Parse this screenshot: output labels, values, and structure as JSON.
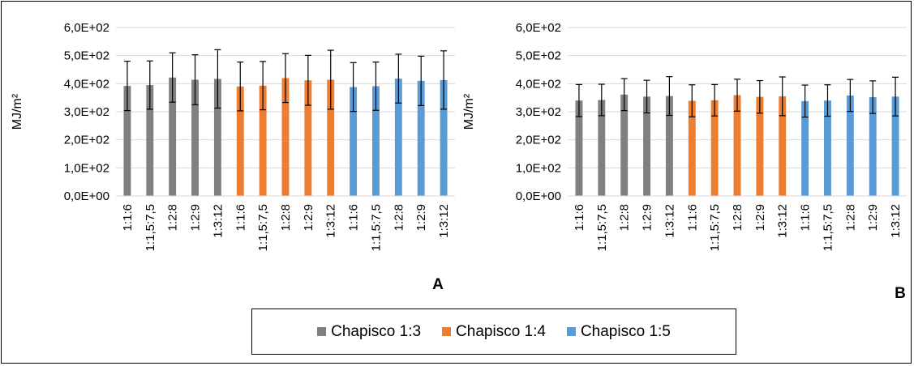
{
  "chart_data": [
    {
      "type": "bar",
      "panel_label": "A",
      "ylabel": "MJ/m²",
      "ylim": [
        0,
        600
      ],
      "ytick_labels": [
        "0,0E+00",
        "1,0E+02",
        "2,0E+02",
        "3,0E+02",
        "4,0E+02",
        "5,0E+02",
        "6,0E+02"
      ],
      "categories": [
        "1:1:6",
        "1:1,5:7,5",
        "1:2:8",
        "1:2:9",
        "1:3:12",
        "1:1:6",
        "1:1,5:7,5",
        "1:2:8",
        "1:2:9",
        "1:3:12",
        "1:1:6",
        "1:1,5:7,5",
        "1:2:8",
        "1:2:9",
        "1:3:12"
      ],
      "series_index": [
        0,
        0,
        0,
        0,
        0,
        1,
        1,
        1,
        1,
        1,
        2,
        2,
        2,
        2,
        2
      ],
      "values": [
        392,
        395,
        422,
        414,
        417,
        390,
        393,
        420,
        412,
        414,
        388,
        391,
        418,
        410,
        413
      ],
      "error": [
        88,
        86,
        88,
        89,
        104,
        87,
        86,
        87,
        89,
        105,
        87,
        86,
        87,
        88,
        104
      ],
      "grid": true
    },
    {
      "type": "bar",
      "panel_label": "B",
      "ylabel": "MJ/m²",
      "ylim": [
        0,
        600
      ],
      "ytick_labels": [
        "0,0E+00",
        "1,0E+02",
        "2,0E+02",
        "3,0E+02",
        "4,0E+02",
        "5,0E+02",
        "6,0E+02"
      ],
      "categories": [
        "1:1:6",
        "1:1,5:7,5",
        "1:2:8",
        "1:2:9",
        "1:3:12",
        "1:1:6",
        "1:1,5:7,5",
        "1:2:8",
        "1:2:9",
        "1:3:12",
        "1:1:6",
        "1:1,5:7,5",
        "1:2:8",
        "1:2:9",
        "1:3:12"
      ],
      "series_index": [
        0,
        0,
        0,
        0,
        0,
        1,
        1,
        1,
        1,
        1,
        2,
        2,
        2,
        2,
        2
      ],
      "values": [
        340,
        342,
        361,
        354,
        356,
        339,
        341,
        359,
        353,
        355,
        338,
        340,
        358,
        352,
        354
      ],
      "error": [
        57,
        56,
        57,
        58,
        69,
        57,
        56,
        57,
        58,
        69,
        57,
        56,
        57,
        58,
        69
      ],
      "grid": true
    }
  ],
  "legend": {
    "position": "bottom-center",
    "items": [
      {
        "label": "Chapisco 1:3",
        "color": "#808080"
      },
      {
        "label": "Chapisco 1:4",
        "color": "#ED7D31"
      },
      {
        "label": "Chapisco 1:5",
        "color": "#5B9BD5"
      }
    ]
  }
}
